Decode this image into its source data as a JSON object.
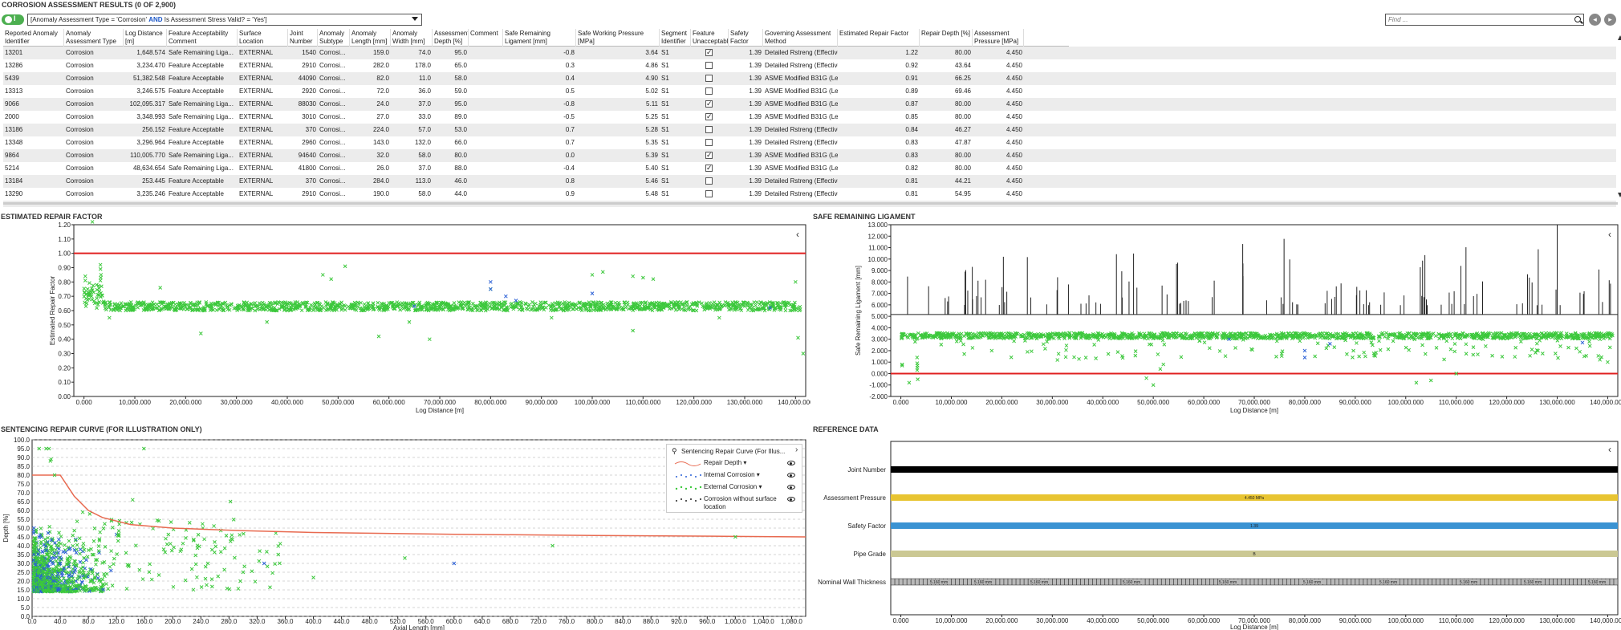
{
  "title": "CORROSION ASSESSMENT RESULTS (0 of 2,900)",
  "toggle": {
    "label": "I"
  },
  "filter": {
    "pre": "[Anomaly Assessment Type = 'Corrosion'",
    "kw1": "AND",
    "post": "Is Assessment Stress Valid? = 'Yes']"
  },
  "find": {
    "placeholder": "Find ..."
  },
  "columns": [
    "Reported Anomaly Identifier",
    "Anomaly Assessment Type",
    "Log Distance [m]",
    "Feature Acceptability Comment",
    "Surface Location",
    "Joint Number",
    "Anomaly Subtype",
    "Anomaly Length [mm]",
    "Anomaly Width [mm]",
    "Assessment Depth [%]",
    "Comment",
    "Safe Remaining Ligament [mm]",
    "Safe Working Pressure [MPa]",
    "Segment Identifier",
    "Feature Unacceptable",
    "Safety Factor",
    "Governing Assessment Method",
    "Estimated Repair Factor",
    "Repair Depth [%]",
    "Assessment Pressure [MPa]"
  ],
  "rows": [
    [
      "13201",
      "Corrosion",
      "1,648.574",
      "Safe Remaining Liga...",
      "EXTERNAL",
      "1540",
      "Corrosi...",
      "159.0",
      "74.0",
      "95.0",
      "",
      "-0.8",
      "3.64",
      "S1",
      "checked",
      "1.39",
      "Detailed Rstreng (Effective Area) (Level 2)",
      "1.22",
      "80.00",
      "4.450"
    ],
    [
      "13286",
      "Corrosion",
      "3,234.470",
      "Feature Acceptable",
      "EXTERNAL",
      "2910",
      "Corrosi...",
      "282.0",
      "178.0",
      "65.0",
      "",
      "0.3",
      "4.86",
      "S1",
      "",
      "1.39",
      "Detailed Rstreng (Effective Area) (Level 2)",
      "0.92",
      "43.64",
      "4.450"
    ],
    [
      "5439",
      "Corrosion",
      "51,382.548",
      "Feature Acceptable",
      "EXTERNAL",
      "44090",
      "Corrosi...",
      "82.0",
      "11.0",
      "58.0",
      "",
      "0.4",
      "4.90",
      "S1",
      "",
      "1.39",
      "ASME Modified B31G (Level 1b)",
      "0.91",
      "66.25",
      "4.450"
    ],
    [
      "13313",
      "Corrosion",
      "3,246.575",
      "Feature Acceptable",
      "EXTERNAL",
      "2920",
      "Corrosi...",
      "72.0",
      "36.0",
      "59.0",
      "",
      "0.5",
      "5.02",
      "S1",
      "",
      "1.39",
      "ASME Modified B31G (Level 1b)",
      "0.89",
      "69.46",
      "4.450"
    ],
    [
      "9066",
      "Corrosion",
      "102,095.317",
      "Safe Remaining Liga...",
      "EXTERNAL",
      "88030",
      "Corrosi...",
      "24.0",
      "37.0",
      "95.0",
      "",
      "-0.8",
      "5.11",
      "S1",
      "checked",
      "1.39",
      "ASME Modified B31G (Level 1b)",
      "0.87",
      "80.00",
      "4.450"
    ],
    [
      "2000",
      "Corrosion",
      "3,348.993",
      "Safe Remaining Liga...",
      "EXTERNAL",
      "3010",
      "Corrosi...",
      "27.0",
      "33.0",
      "89.0",
      "",
      "-0.5",
      "5.25",
      "S1",
      "checked",
      "1.39",
      "ASME Modified B31G (Level 1b)",
      "0.85",
      "80.00",
      "4.450"
    ],
    [
      "13186",
      "Corrosion",
      "256.152",
      "Feature Acceptable",
      "EXTERNAL",
      "370",
      "Corrosi...",
      "224.0",
      "57.0",
      "53.0",
      "",
      "0.7",
      "5.28",
      "S1",
      "",
      "1.39",
      "Detailed Rstreng (Effective Area) (Level 2)",
      "0.84",
      "46.27",
      "4.450"
    ],
    [
      "13348",
      "Corrosion",
      "3,296.964",
      "Feature Acceptable",
      "EXTERNAL",
      "2960",
      "Corrosi...",
      "143.0",
      "132.0",
      "66.0",
      "",
      "0.7",
      "5.35",
      "S1",
      "",
      "1.39",
      "Detailed Rstreng (Effective Area) (Level 2)",
      "0.83",
      "47.87",
      "4.450"
    ],
    [
      "9864",
      "Corrosion",
      "110,005.770",
      "Safe Remaining Liga...",
      "EXTERNAL",
      "94640",
      "Corrosi...",
      "32.0",
      "58.0",
      "80.0",
      "",
      "0.0",
      "5.39",
      "S1",
      "checked",
      "1.39",
      "ASME Modified B31G (Level 1b)",
      "0.83",
      "80.00",
      "4.450"
    ],
    [
      "5214",
      "Corrosion",
      "48,634.654",
      "Safe Remaining Liga...",
      "EXTERNAL",
      "41800",
      "Corrosi...",
      "26.0",
      "37.0",
      "88.0",
      "",
      "-0.4",
      "5.40",
      "S1",
      "checked",
      "1.39",
      "ASME Modified B31G (Level 1b)",
      "0.82",
      "80.00",
      "4.450"
    ],
    [
      "13184",
      "Corrosion",
      "253.445",
      "Feature Acceptable",
      "EXTERNAL",
      "370",
      "Corrosi...",
      "284.0",
      "113.0",
      "46.0",
      "",
      "0.8",
      "5.46",
      "S1",
      "",
      "1.39",
      "Detailed Rstreng (Effective Area) (Level 2)",
      "0.81",
      "44.21",
      "4.450"
    ],
    [
      "13290",
      "Corrosion",
      "3,235.246",
      "Feature Acceptable",
      "EXTERNAL",
      "2910",
      "Corrosi...",
      "190.0",
      "58.0",
      "44.0",
      "",
      "0.9",
      "5.48",
      "S1",
      "",
      "1.39",
      "Detailed Rstreng (Effective Area) (Level 2)",
      "0.81",
      "54.95",
      "4.450"
    ]
  ],
  "check_mark": "✓",
  "chart_data": [
    {
      "type": "scatter",
      "title": "ESTIMATED REPAIR FACTOR",
      "xlabel": "Log Distance [m]",
      "ylabel": "Estimated Repair Factor",
      "xlim": [
        -2000,
        142000
      ],
      "ylim": [
        0,
        1.2
      ],
      "xticks": [
        "0.000",
        "10,000.000",
        "20,000.000",
        "30,000.000",
        "40,000.000",
        "50,000.000",
        "60,000.000",
        "70,000.000",
        "80,000.000",
        "90,000.000",
        "100,000.000",
        "110,000.000",
        "120,000.000",
        "130,000.000",
        "140,000.000"
      ],
      "yticks": [
        "0.00",
        "0.10",
        "0.20",
        "0.30",
        "0.40",
        "0.50",
        "0.60",
        "0.70",
        "0.80",
        "0.90",
        "1.00",
        "1.10",
        "1.20"
      ],
      "threshold": 1.0,
      "series": [
        {
          "name": "External Corrosion",
          "color": "#3cc83c",
          "values": [
            [
              1648.6,
              1.22
            ],
            [
              3234.5,
              0.92
            ],
            [
              51382.5,
              0.91
            ],
            [
              3246.6,
              0.89
            ],
            [
              102095.3,
              0.87
            ],
            [
              3349.0,
              0.85
            ],
            [
              256.2,
              0.84
            ],
            [
              3297.0,
              0.83
            ],
            [
              110005.8,
              0.83
            ],
            [
              48634.7,
              0.82
            ],
            [
              253.4,
              0.81
            ],
            [
              3235.2,
              0.81
            ],
            [
              15000,
              0.76
            ],
            [
              47000,
              0.85
            ],
            [
              100000,
              0.85
            ],
            [
              108000,
              0.84
            ],
            [
              140000,
              0.8
            ],
            [
              112000,
              0.82
            ],
            [
              80000,
              0.75
            ],
            [
              141500,
              0.3
            ],
            [
              140500,
              0.41
            ],
            [
              23000,
              0.44
            ],
            [
              58000,
              0.42
            ],
            [
              68000,
              0.4
            ],
            [
              108000,
              0.46
            ],
            [
              5000,
              0.55
            ],
            [
              1500,
              0.7
            ],
            [
              2500,
              0.78
            ],
            [
              36000,
              0.52
            ],
            [
              64000,
              0.52
            ],
            [
              92000,
              0.55
            ],
            [
              125000,
              0.55
            ]
          ]
        },
        {
          "name": "Internal Corrosion",
          "color": "#2a5fd6",
          "values": [
            [
              80000,
              0.8
            ],
            [
              80000,
              0.75
            ],
            [
              83000,
              0.7
            ],
            [
              85000,
              0.67
            ],
            [
              100000,
              0.72
            ],
            [
              65000,
              0.63
            ],
            [
              135000,
              0.62
            ]
          ]
        }
      ]
    },
    {
      "type": "scatter",
      "title": "SAFE REMAINING LIGAMENT",
      "xlabel": "Log Distance [m]",
      "ylabel": "Safe Remaining Ligament [mm]",
      "xlim": [
        -2000,
        142000
      ],
      "ylim": [
        -2000,
        13000
      ],
      "xticks": [
        "0.000",
        "10,000.000",
        "20,000.000",
        "30,000.000",
        "40,000.000",
        "50,000.000",
        "60,000.000",
        "70,000.000",
        "80,000.000",
        "90,000.000",
        "100,000.000",
        "110,000.000",
        "120,000.000",
        "130,000.000",
        "140,000.000"
      ],
      "yticks": [
        "-2.000",
        "-1.000",
        "0.000",
        "1.000",
        "2.000",
        "3.000",
        "4.000",
        "5.000",
        "6.000",
        "7.000",
        "8.000",
        "9.000",
        "10.000",
        "11.000",
        "12.000",
        "13.000"
      ],
      "threshold": 0,
      "series": [
        {
          "name": "External Corrosion",
          "color": "#3cc83c",
          "values": [
            [
              1648.6,
              -0.8
            ],
            [
              3234.5,
              0.3
            ],
            [
              51382.5,
              0.4
            ],
            [
              3246.6,
              0.5
            ],
            [
              102095.3,
              -0.8
            ],
            [
              3349.0,
              -0.5
            ],
            [
              256.2,
              0.7
            ],
            [
              3297.0,
              0.7
            ],
            [
              110005.8,
              0.0
            ],
            [
              48634.7,
              -0.4
            ],
            [
              253.4,
              0.8
            ],
            [
              3235.2,
              0.9
            ],
            [
              50000,
              -1000
            ],
            [
              52000,
              800
            ],
            [
              18000,
              2000
            ],
            [
              92000,
              1500
            ],
            [
              105000,
              -600
            ],
            [
              125000,
              2100
            ],
            [
              140000,
              1000
            ]
          ]
        },
        {
          "name": "Internal Corrosion",
          "color": "#2a5fd6",
          "values": [
            [
              80000,
              2000
            ],
            [
              80000,
              1400
            ],
            [
              85000,
              2600
            ],
            [
              135000,
              2700
            ],
            [
              65000,
              3000
            ]
          ]
        }
      ]
    },
    {
      "type": "scatter",
      "title": "SENTENCING REPAIR CURVE (FOR ILLUSTRATION ONLY)",
      "xlabel": "Axial Length [mm]",
      "ylabel": "Depth [%]",
      "xlim": [
        0,
        1100
      ],
      "ylim": [
        0,
        100
      ],
      "xticks": [
        "0.0",
        "40.0",
        "80.0",
        "120.0",
        "160.0",
        "200.0",
        "240.0",
        "280.0",
        "320.0",
        "360.0",
        "400.0",
        "440.0",
        "480.0",
        "520.0",
        "560.0",
        "600.0",
        "640.0",
        "680.0",
        "720.0",
        "760.0",
        "800.0",
        "840.0",
        "880.0",
        "920.0",
        "960.0",
        "1,000.0",
        "1,040.0",
        "1,080.0"
      ],
      "yticks": [
        "0.0",
        "5.0",
        "10.0",
        "15.0",
        "20.0",
        "25.0",
        "30.0",
        "35.0",
        "40.0",
        "45.0",
        "50.0",
        "55.0",
        "60.0",
        "65.0",
        "70.0",
        "75.0",
        "80.0",
        "85.0",
        "90.0",
        "95.0",
        "100.0"
      ],
      "series": [
        {
          "name": "Repair Depth",
          "color": "#e86a50",
          "values": [
            [
              0,
              80
            ],
            [
              40,
              80
            ],
            [
              60,
              68
            ],
            [
              80,
              60
            ],
            [
              100,
              56
            ],
            [
              140,
              52
            ],
            [
              200,
              50
            ],
            [
              300,
              48.5
            ],
            [
              400,
              47.5
            ],
            [
              600,
              46.5
            ],
            [
              800,
              45.8
            ],
            [
              1000,
              45.3
            ],
            [
              1100,
              45
            ]
          ]
        },
        {
          "name": "External Corrosion",
          "color": "#3cc83c",
          "values": [
            [
              159,
              95
            ],
            [
              282,
              65
            ],
            [
              82,
              58
            ],
            [
              72,
              59
            ],
            [
              24,
              95
            ],
            [
              27,
              89
            ],
            [
              224,
              53
            ],
            [
              143,
              66
            ],
            [
              32,
              80
            ],
            [
              26,
              88
            ],
            [
              284,
              46
            ],
            [
              190,
              44
            ],
            [
              740,
              40
            ],
            [
              530,
              33
            ],
            [
              10,
              95
            ],
            [
              20,
              95
            ],
            [
              1000,
              45
            ],
            [
              250,
              30
            ],
            [
              300,
              25
            ],
            [
              400,
              22
            ],
            [
              350,
              35
            ]
          ]
        },
        {
          "name": "Internal Corrosion",
          "color": "#2a5fd6",
          "values": [
            [
              600,
              30
            ],
            [
              330,
              30
            ],
            [
              40,
              30
            ],
            [
              60,
              25
            ],
            [
              30,
              20
            ]
          ]
        }
      ],
      "legend": {
        "title": "Sentencing Repair Curve (For Illus...",
        "items": [
          "Repair Depth ▾",
          "Internal Corrosion ▾",
          "External Corrosion ▾",
          "Corrosion without surface location"
        ]
      }
    }
  ],
  "sections": {
    "erf": "ESTIMATED REPAIR FACTOR",
    "srl": "SAFE REMAINING LIGAMENT",
    "src": "SENTENCING REPAIR CURVE (FOR ILLUSTRATION ONLY)",
    "ref": "REFERENCE DATA"
  },
  "reference": {
    "rows": [
      {
        "label": "Joint Number",
        "color": "#000000",
        "text": ""
      },
      {
        "label": "Assessment Pressure",
        "color": "#e8c431",
        "text": "4.450 MPa"
      },
      {
        "label": "Safety Factor",
        "color": "#3a93d3",
        "text": "1.39"
      },
      {
        "label": "Pipe Grade",
        "color": "#cbc893",
        "text": "B"
      },
      {
        "label": "Nominal Wall Thickness",
        "color": "#b9b9b9",
        "text": "5.160 mm"
      }
    ],
    "xticks": [
      "0.000",
      "10,000.000",
      "20,000.000",
      "30,000.000",
      "40,000.000",
      "50,000.000",
      "60,000.000",
      "70,000.000",
      "80,000.000",
      "90,000.000",
      "100,000.000",
      "110,000.000",
      "120,000.000",
      "130,000.000",
      "140,000.000"
    ],
    "xlabel": "Log Distance [m]"
  },
  "icons": {
    "chevron": "‹",
    "pin": "📌"
  }
}
